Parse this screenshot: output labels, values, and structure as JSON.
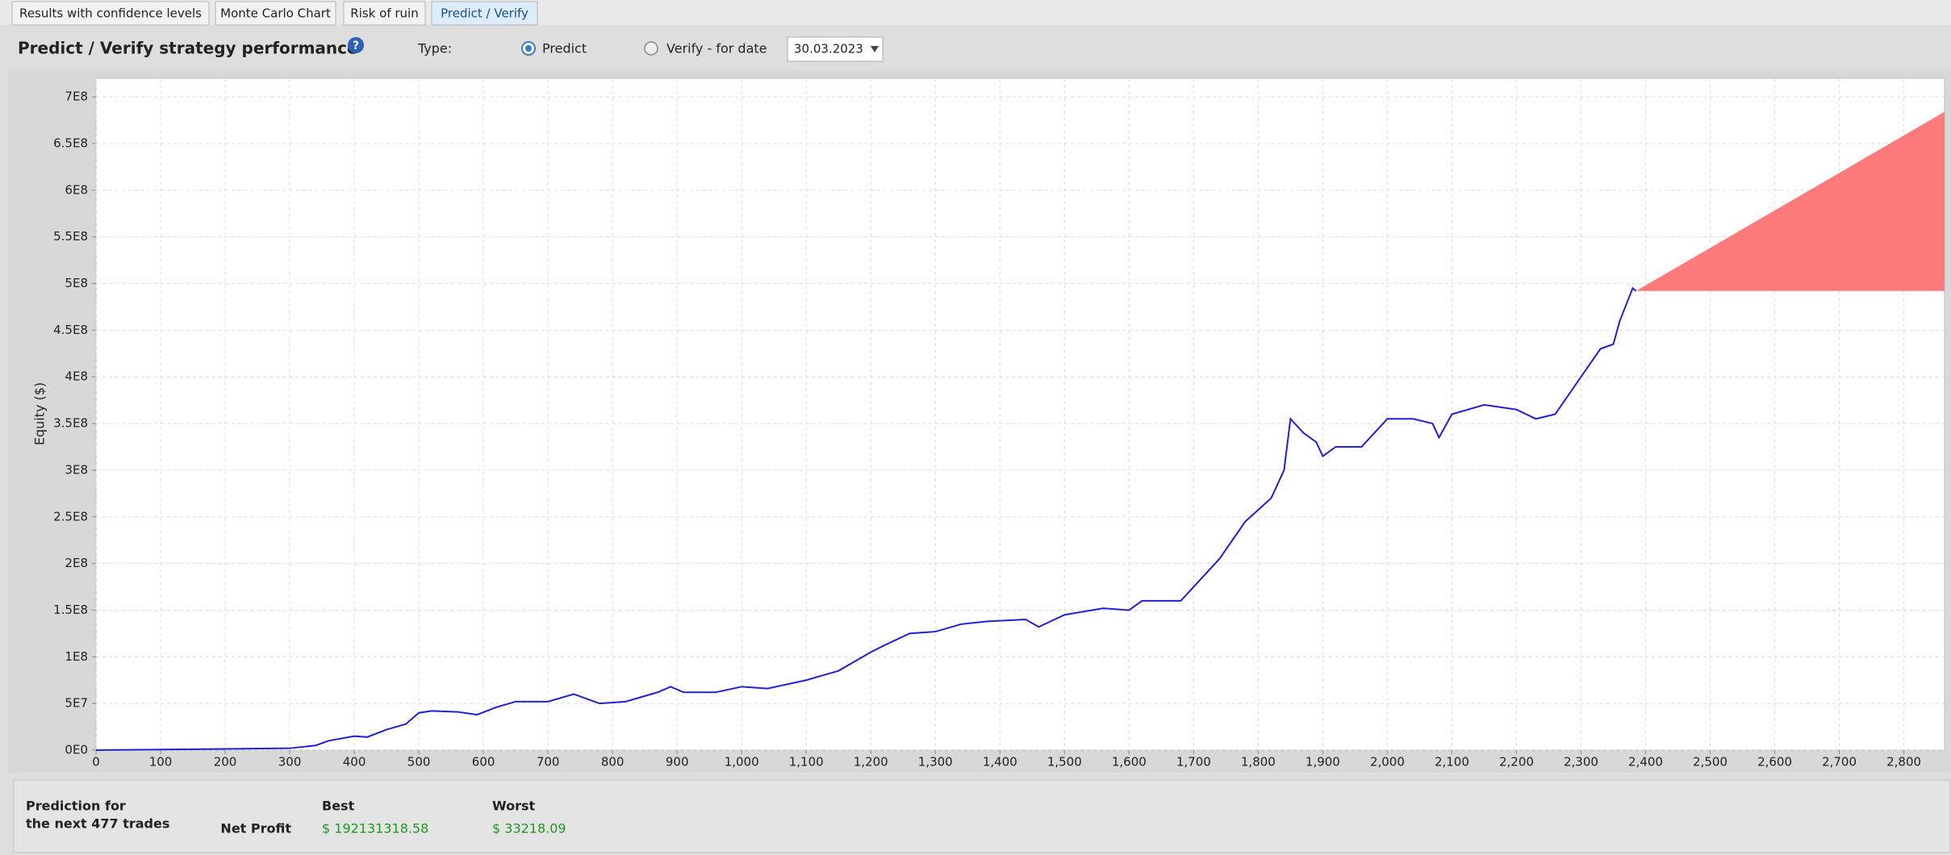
{
  "tabs": [
    "Results with confidence levels",
    "Monte Carlo Chart",
    "Risk of ruin",
    "Predict / Verify"
  ],
  "header": {
    "title": "Predict / Verify strategy performance",
    "help_icon": "?",
    "type_label": "Type:",
    "predict": "Predict",
    "verify": "Verify - for date",
    "date": "30.03.2023"
  },
  "chart_data": {
    "type": "line",
    "y_label": "Equity ($)",
    "grid": true,
    "x": [
      0,
      300,
      340,
      360,
      400,
      420,
      450,
      480,
      500,
      520,
      560,
      590,
      620,
      650,
      700,
      740,
      780,
      820,
      870,
      890,
      910,
      960,
      1000,
      1040,
      1100,
      1150,
      1200,
      1220,
      1260,
      1300,
      1340,
      1380,
      1440,
      1460,
      1500,
      1560,
      1600,
      1620,
      1680,
      1700,
      1740,
      1780,
      1820,
      1840,
      1850,
      1870,
      1890,
      1900,
      1920,
      1960,
      2000,
      2040,
      2070,
      2080,
      2100,
      2150,
      2200,
      2230,
      2260,
      2300,
      2330,
      2350,
      2360,
      2380,
      2385
    ],
    "series": [
      {
        "color": "#2020d8",
        "values": [
          0,
          2000000,
          5000000,
          10000000,
          15000000,
          14000000,
          22000000,
          28000000,
          40000000,
          42000000,
          41000000,
          38000000,
          46000000,
          52000000,
          52000000,
          60000000,
          50000000,
          52000000,
          62000000,
          68000000,
          62000000,
          62000000,
          68000000,
          66000000,
          75000000,
          85000000,
          105000000,
          112000000,
          125000000,
          127000000,
          135000000,
          138000000,
          140000000,
          132000000,
          145000000,
          152000000,
          150000000,
          160000000,
          160000000,
          175000000,
          205000000,
          245000000,
          270000000,
          300000000,
          355000000,
          340000000,
          330000000,
          315000000,
          325000000,
          325000000,
          355000000,
          355000000,
          350000000,
          335000000,
          360000000,
          370000000,
          365000000,
          355000000,
          360000000,
          400000000,
          430000000,
          435000000,
          460000000,
          495000000,
          492000000
        ]
      }
    ],
    "prediction": {
      "color": "#ff7b7b",
      "x": [
        2385,
        2863
      ],
      "upper": [
        492000000,
        684000000
      ],
      "lower": [
        492000000,
        492000000
      ]
    },
    "xlim": [
      0,
      2863
    ],
    "ylim": [
      0,
      720000000
    ],
    "xticks": [
      0,
      100,
      200,
      300,
      400,
      500,
      600,
      700,
      800,
      900,
      {
        "value": 1000,
        "label": "1,000"
      },
      {
        "value": 1100,
        "label": "1,100"
      },
      {
        "value": 1200,
        "label": "1,200"
      },
      {
        "value": 1300,
        "label": "1,300"
      },
      {
        "value": 1400,
        "label": "1,400"
      },
      {
        "value": 1500,
        "label": "1,500"
      },
      {
        "value": 1600,
        "label": "1,600"
      },
      {
        "value": 1700,
        "label": "1,700"
      },
      {
        "value": 1800,
        "label": "1,800"
      },
      {
        "value": 1900,
        "label": "1,900"
      },
      {
        "value": 2000,
        "label": "2,000"
      },
      {
        "value": 2100,
        "label": "2,100"
      },
      {
        "value": 2200,
        "label": "2,200"
      },
      {
        "value": 2300,
        "label": "2,300"
      },
      {
        "value": 2400,
        "label": "2,400"
      },
      {
        "value": 2500,
        "label": "2,500"
      },
      {
        "value": 2600,
        "label": "2,600"
      },
      {
        "value": 2700,
        "label": "2,700"
      },
      {
        "value": 2800,
        "label": "2,800"
      }
    ],
    "yticks": [
      {
        "value": 0,
        "label": "0E0"
      },
      {
        "value": 50000000,
        "label": "5E7"
      },
      {
        "value": 100000000,
        "label": "1E8"
      },
      {
        "value": 150000000,
        "label": "1.5E8"
      },
      {
        "value": 200000000,
        "label": "2E8"
      },
      {
        "value": 250000000,
        "label": "2.5E8"
      },
      {
        "value": 300000000,
        "label": "3E8"
      },
      {
        "value": 350000000,
        "label": "3.5E8"
      },
      {
        "value": 400000000,
        "label": "4E8"
      },
      {
        "value": 450000000,
        "label": "4.5E8"
      },
      {
        "value": 500000000,
        "label": "5E8"
      },
      {
        "value": 550000000,
        "label": "5.5E8"
      },
      {
        "value": 600000000,
        "label": "6E8"
      },
      {
        "value": 650000000,
        "label": "6.5E8"
      },
      {
        "value": 700000000,
        "label": "7E8"
      }
    ]
  },
  "summary": {
    "heading": [
      "Prediction for",
      "the next 477 trades"
    ],
    "best": "Best",
    "worst": "Worst",
    "row_label": "Net Profit",
    "best_value": "$ 192131318.58",
    "worst_value": "$ 33218.09"
  }
}
